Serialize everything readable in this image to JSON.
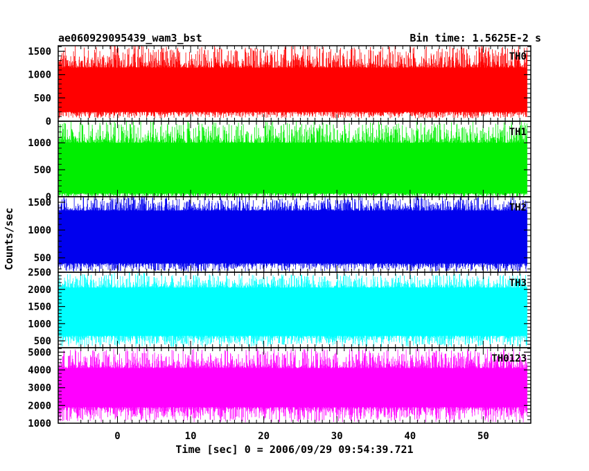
{
  "chart_data": {
    "type": "line",
    "title": "ae060929095439_wam3_bst",
    "subtitle": "Bin time: 1.5625E-2 s",
    "xlabel": "Time [sec] 0 = 2006/09/29 09:54:39.721",
    "ylabel": "Counts/sec",
    "xlim": [
      -8.1,
      56.5
    ],
    "x_ticks": [
      0,
      10,
      20,
      30,
      40,
      50
    ],
    "x_range_data": [
      -8,
      56
    ],
    "bin_time_s": 0.015625,
    "panels": [
      {
        "name": "TH0",
        "color": "#ff0000",
        "ylim": [
          0,
          1620
        ],
        "y_ticks": [
          0,
          500,
          1000,
          1500
        ],
        "base_level": 650,
        "band_low": 200,
        "band_high": 1150,
        "spike_max": 1620,
        "trough_min": 60
      },
      {
        "name": "TH1",
        "color": "#00ee00",
        "ylim": [
          0,
          1400
        ],
        "y_ticks": [
          0,
          500,
          1000
        ],
        "base_level": 500,
        "band_low": 60,
        "band_high": 1000,
        "spike_max": 1400,
        "trough_min": 0
      },
      {
        "name": "TH2",
        "color": "#0000ee",
        "ylim": [
          240,
          1600
        ],
        "y_ticks": [
          500,
          1000,
          1500
        ],
        "base_level": 820,
        "band_low": 400,
        "band_high": 1350,
        "spike_max": 1600,
        "trough_min": 250
      },
      {
        "name": "TH3",
        "color": "#00ffff",
        "ylim": [
          300,
          2500
        ],
        "y_ticks": [
          500,
          1000,
          1500,
          2000,
          2500
        ],
        "base_level": 1200,
        "band_low": 650,
        "band_high": 2050,
        "spike_max": 2450,
        "trough_min": 320
      },
      {
        "name": "TH0123",
        "color": "#ff00ff",
        "ylim": [
          1000,
          5250
        ],
        "y_ticks": [
          1000,
          2000,
          3000,
          4000,
          5000
        ],
        "base_level": 2900,
        "band_low": 1900,
        "band_high": 4100,
        "spike_max": 5200,
        "trough_min": 1050
      }
    ]
  }
}
